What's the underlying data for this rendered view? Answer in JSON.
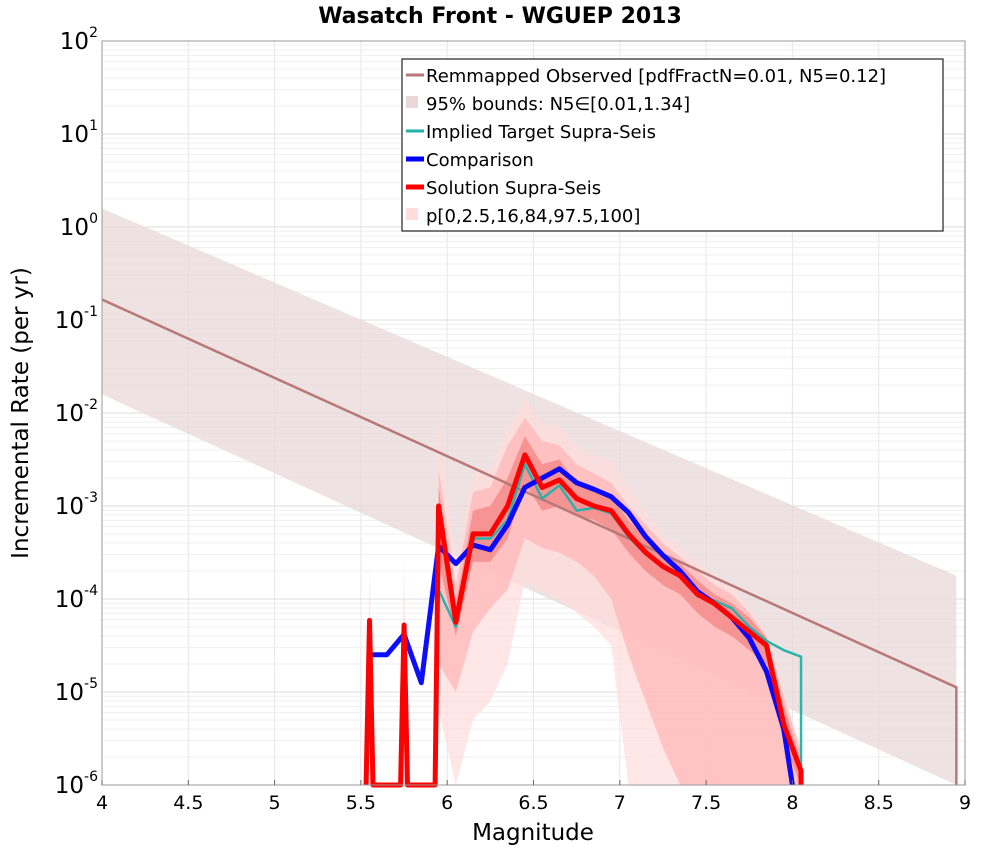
{
  "chart_data": {
    "type": "line",
    "title": "Wasatch Front - WGUEP 2013",
    "xlabel": "Magnitude",
    "ylabel": "Incremental Rate (per yr)",
    "xlim": [
      4,
      9
    ],
    "ylim_log10": [
      -6,
      2
    ],
    "yscale": "log",
    "x_ticks": [
      "4",
      "4.5",
      "5",
      "5.5",
      "6",
      "6.5",
      "7",
      "7.5",
      "8",
      "8.5",
      "9"
    ],
    "y_tick_base": "10",
    "y_tick_exps": [
      "-6",
      "-5",
      "-4",
      "-3",
      "-2",
      "-1",
      "0",
      "1",
      "2"
    ],
    "grid": true,
    "legend_position": "top-right",
    "legend": [
      {
        "label": "Remmapped Observed [pdfFractN=0.01, N5=0.12]",
        "color": "#b87878",
        "kind": "line"
      },
      {
        "label": "95% bounds: N5∈[0.01,1.34]",
        "color": "#ead8d8",
        "kind": "patch"
      },
      {
        "label": "Implied Target Supra-Seis",
        "color": "#20b2aa",
        "kind": "line"
      },
      {
        "label": "Comparison",
        "color": "#0000ff",
        "kind": "thick-line"
      },
      {
        "label": "Solution Supra-Seis",
        "color": "#ff0000",
        "kind": "thick-line"
      },
      {
        "label": "p[0,2.5,16,84,97.5,100]",
        "color": "#ffdddd",
        "kind": "patch"
      }
    ],
    "series": [
      {
        "name": "Remmapped Observed [pdfFractN=0.01, N5=0.12]",
        "color": "#b87878",
        "log10_x_points": [
          [
            4.0,
            -0.78
          ],
          [
            8.95,
            -4.95
          ],
          [
            8.95,
            -6.0
          ]
        ]
      },
      {
        "name": "95% bounds: N5∈[0.01,1.34]",
        "color": "#ead8d8",
        "upper": [
          [
            4.0,
            0.2
          ],
          [
            8.95,
            -3.75
          ]
        ],
        "lower": [
          [
            4.0,
            -1.8
          ],
          [
            8.95,
            -6.0
          ]
        ]
      },
      {
        "name": "Implied Target Supra-Seis",
        "color": "#20b2aa",
        "x": [
          5.95,
          6.05,
          6.15,
          6.25,
          6.35,
          6.45,
          6.55,
          6.65,
          6.75,
          6.85,
          6.95,
          7.05,
          7.15,
          7.25,
          7.35,
          7.45,
          7.55,
          7.65,
          7.75,
          7.85,
          7.95,
          8.05,
          8.05
        ],
        "log10_y": [
          -3.9,
          -4.3,
          -3.35,
          -3.35,
          -3.15,
          -2.55,
          -2.92,
          -2.78,
          -3.05,
          -3.02,
          -3.08,
          -3.33,
          -3.52,
          -3.65,
          -3.75,
          -3.97,
          -4.02,
          -4.1,
          -4.3,
          -4.45,
          -4.55,
          -4.62,
          -6.0
        ]
      },
      {
        "name": "Comparison",
        "color": "#0000ff",
        "x": [
          5.55,
          5.65,
          5.75,
          5.85,
          5.95,
          6.05,
          6.15,
          6.25,
          6.35,
          6.45,
          6.55,
          6.65,
          6.75,
          6.85,
          6.95,
          7.05,
          7.15,
          7.25,
          7.35,
          7.45,
          7.55,
          7.65,
          7.75,
          7.85,
          7.95,
          8.0
        ],
        "log10_y": [
          -4.6,
          -4.6,
          -4.38,
          -4.9,
          -3.43,
          -3.62,
          -3.42,
          -3.47,
          -3.2,
          -2.8,
          -2.7,
          -2.6,
          -2.75,
          -2.82,
          -2.9,
          -3.07,
          -3.33,
          -3.53,
          -3.7,
          -3.92,
          -4.05,
          -4.2,
          -4.42,
          -4.78,
          -5.4,
          -6.0
        ]
      },
      {
        "name": "Solution Supra-Seis",
        "color": "#ff0000",
        "x": [
          5.53,
          5.55,
          5.57,
          5.73,
          5.75,
          5.77,
          5.93,
          5.95,
          6.05,
          6.15,
          6.25,
          6.35,
          6.45,
          6.55,
          6.65,
          6.75,
          6.85,
          6.95,
          7.05,
          7.15,
          7.25,
          7.35,
          7.45,
          7.55,
          7.65,
          7.75,
          7.85,
          7.95,
          8.05,
          8.05
        ],
        "log10_y": [
          -6.0,
          -4.23,
          -6.0,
          -6.0,
          -4.28,
          -6.0,
          -6.0,
          -3.0,
          -4.25,
          -3.3,
          -3.3,
          -3.0,
          -2.45,
          -2.8,
          -2.72,
          -2.92,
          -3.0,
          -3.05,
          -3.3,
          -3.5,
          -3.65,
          -3.75,
          -3.95,
          -4.05,
          -4.2,
          -4.35,
          -4.5,
          -5.35,
          -5.85,
          -6.0
        ]
      }
    ],
    "percentile_bands": [
      {
        "name": "p[0,100]",
        "color": "#ffdddd",
        "x": [
          5.53,
          5.55,
          5.57,
          5.73,
          5.75,
          5.77,
          5.93,
          5.95,
          6.05,
          6.15,
          6.25,
          6.35,
          6.45,
          6.55,
          6.65,
          6.75,
          6.85,
          6.95,
          7.05,
          7.15,
          7.25,
          7.35,
          7.45,
          7.55,
          7.65,
          7.75,
          7.85,
          7.95,
          8.05
        ],
        "upper": [
          -6.0,
          -3.6,
          -6.0,
          -6.0,
          -3.55,
          -6.0,
          -6.0,
          -2.05,
          -3.6,
          -2.65,
          -2.6,
          -2.15,
          -1.85,
          -2.1,
          -2.15,
          -2.35,
          -2.45,
          -2.5,
          -2.8,
          -3.05,
          -3.3,
          -3.45,
          -3.6,
          -3.75,
          -3.85,
          -4.1,
          -4.35,
          -5.0,
          -5.6
        ],
        "lower": [
          -6.0,
          -6.0,
          -6.0,
          -6.0,
          -6.0,
          -6.0,
          -6.0,
          -5.2,
          -6.0,
          -5.3,
          -5.1,
          -4.7,
          -3.8,
          -3.9,
          -4.0,
          -4.15,
          -4.3,
          -4.5,
          -6.0,
          -6.0,
          -6.0,
          -6.0,
          -6.0,
          -6.0,
          -6.0,
          -6.0,
          -6.0,
          -6.0,
          -6.0
        ]
      },
      {
        "name": "p[2.5,97.5]",
        "color": "#ffb3b3",
        "x": [
          5.95,
          6.05,
          6.15,
          6.25,
          6.35,
          6.45,
          6.55,
          6.65,
          6.75,
          6.85,
          6.95,
          7.05,
          7.15,
          7.25,
          7.35,
          7.45,
          7.55,
          7.65,
          7.75,
          7.85,
          7.95,
          8.05
        ],
        "upper": [
          -2.6,
          -3.85,
          -2.85,
          -2.8,
          -2.35,
          -2.05,
          -2.3,
          -2.35,
          -2.55,
          -2.65,
          -2.75,
          -3.0,
          -3.2,
          -3.4,
          -3.55,
          -3.7,
          -3.85,
          -3.95,
          -4.15,
          -4.4,
          -5.05,
          -5.65
        ],
        "lower": [
          -4.7,
          -5.0,
          -4.35,
          -4.1,
          -3.9,
          -3.35,
          -3.45,
          -3.5,
          -3.6,
          -3.75,
          -4.0,
          -4.6,
          -5.1,
          -5.6,
          -6.0,
          -6.0,
          -6.0,
          -6.0,
          -6.0,
          -6.0,
          -6.0,
          -6.0
        ]
      },
      {
        "name": "p[16,84]",
        "color": "#f28080",
        "x": [
          5.95,
          6.05,
          6.15,
          6.25,
          6.35,
          6.45,
          6.55,
          6.65,
          6.75,
          6.85,
          6.95,
          7.05,
          7.15,
          7.25,
          7.35,
          7.45,
          7.55,
          7.65,
          7.75,
          7.85,
          7.95,
          8.05
        ],
        "upper": [
          -2.8,
          -4.05,
          -3.05,
          -3.0,
          -2.7,
          -2.25,
          -2.55,
          -2.5,
          -2.75,
          -2.85,
          -2.9,
          -3.15,
          -3.35,
          -3.5,
          -3.62,
          -3.8,
          -3.95,
          -4.05,
          -4.2,
          -4.42,
          -5.15,
          -5.75
        ],
        "lower": [
          -3.6,
          -4.4,
          -3.6,
          -3.6,
          -3.35,
          -2.75,
          -3.05,
          -3.0,
          -3.1,
          -3.15,
          -3.25,
          -3.5,
          -3.7,
          -3.85,
          -3.95,
          -4.15,
          -4.3,
          -4.4,
          -4.55,
          -4.7,
          -5.55,
          -6.0
        ]
      }
    ]
  }
}
